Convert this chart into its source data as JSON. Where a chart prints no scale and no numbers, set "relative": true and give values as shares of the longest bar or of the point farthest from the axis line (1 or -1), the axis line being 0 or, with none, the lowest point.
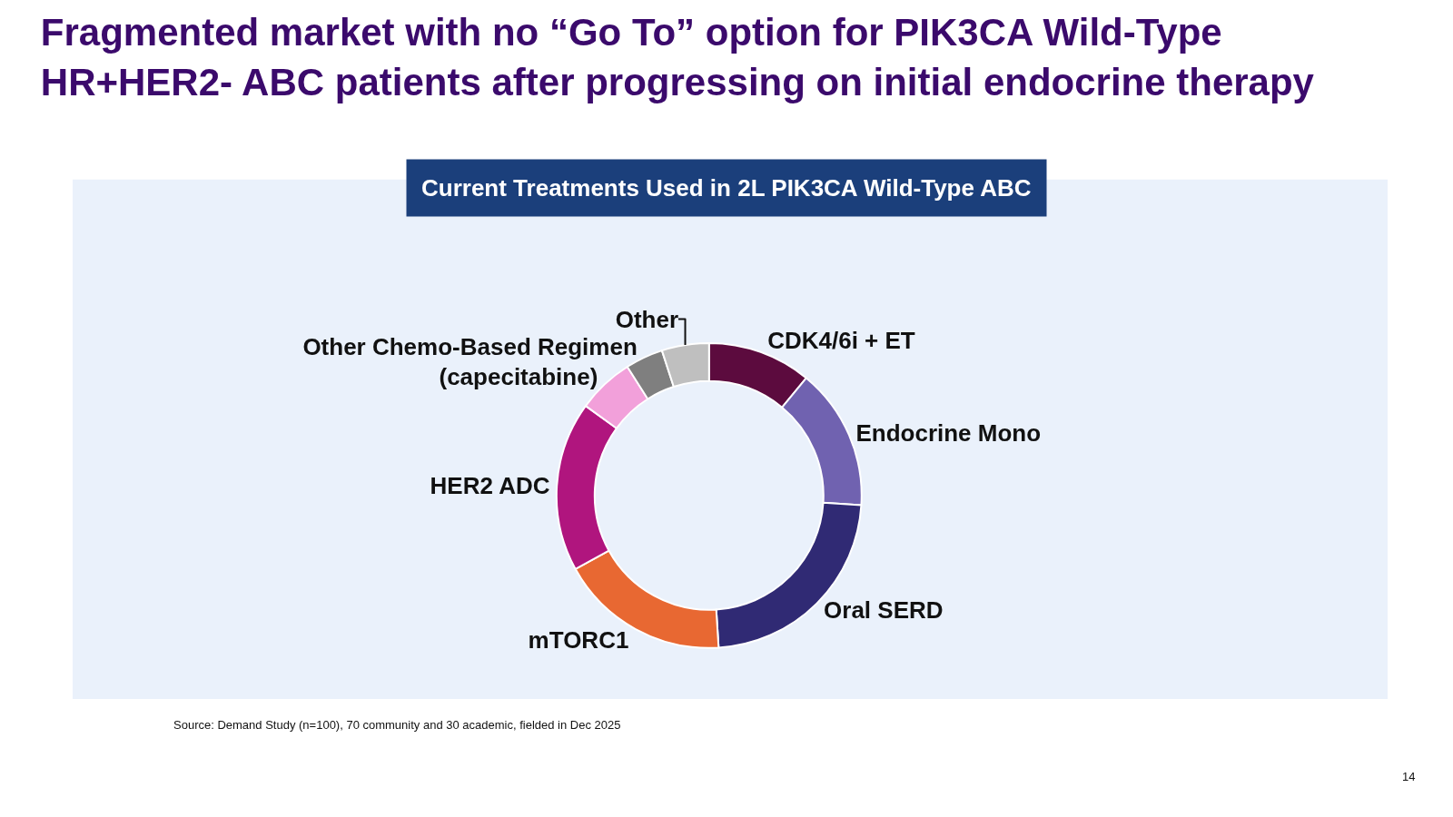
{
  "chart_data": {
    "type": "donut",
    "title": "Fragmented market with no “Go To” option for PIK3CA Wild-Type\nHR+HER2- ABC patients after progressing on initial endocrine therapy",
    "subtitle": "Current Treatments Used in 2L PIK3CA Wild-Type ABC",
    "relative": true,
    "categories": [
      "CDK4/6i + ET",
      "Endocrine Mono",
      "Oral SERD",
      "mTORC1",
      "HER2 ADC",
      "(capecitabine)",
      "Other Chemo-Based Regimen",
      "Other"
    ],
    "values": [
      11,
      15,
      23,
      18,
      18,
      6,
      4,
      5
    ],
    "colors": [
      "#5c0b3e",
      "#7062b0",
      "#302a74",
      "#e86832",
      "#b0157e",
      "#f2a0da",
      "#7f7f7f",
      "#bfbfbf"
    ],
    "annotations": [
      "Source: Demand Study (n=100), 70 community and 30 academic, fielded in Dec 2025",
      "14"
    ],
    "legend": false
  }
}
